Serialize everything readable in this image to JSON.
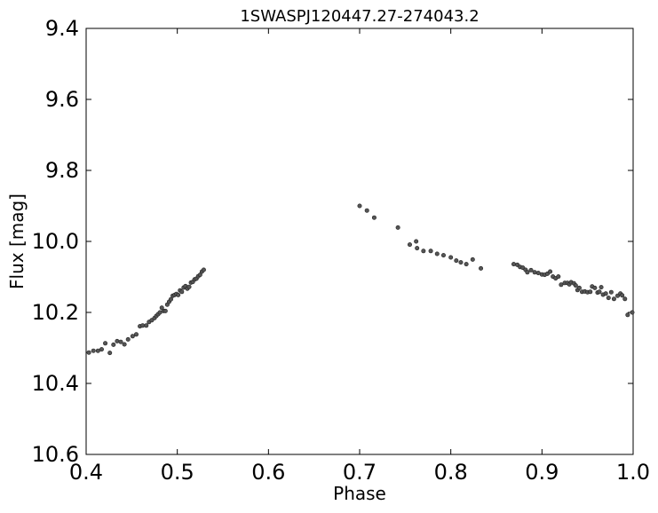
{
  "chart_data": {
    "type": "scatter",
    "title": "1SWASPJ120447.27-274043.2",
    "xlabel": "Phase",
    "ylabel": "Flux [mag]",
    "xlim": [
      0.4,
      1.0
    ],
    "ylim": [
      10.6,
      9.4
    ],
    "y_inverted": true,
    "grid": false,
    "x_ticks": [
      "0.4",
      "0.5",
      "0.6",
      "0.7",
      "0.8",
      "0.9",
      "1.0"
    ],
    "y_ticks": [
      "9.4",
      "9.6",
      "9.8",
      "10.0",
      "10.2",
      "10.4",
      "10.6"
    ],
    "marker_color": "#555555",
    "points": [
      [
        0.403,
        10.313
      ],
      [
        0.408,
        10.308
      ],
      [
        0.413,
        10.308
      ],
      [
        0.417,
        10.304
      ],
      [
        0.421,
        10.287
      ],
      [
        0.426,
        10.314
      ],
      [
        0.43,
        10.291
      ],
      [
        0.434,
        10.281
      ],
      [
        0.438,
        10.283
      ],
      [
        0.442,
        10.29
      ],
      [
        0.446,
        10.276
      ],
      [
        0.451,
        10.267
      ],
      [
        0.455,
        10.262
      ],
      [
        0.459,
        10.239
      ],
      [
        0.462,
        10.237
      ],
      [
        0.466,
        10.237
      ],
      [
        0.469,
        10.227
      ],
      [
        0.472,
        10.222
      ],
      [
        0.475,
        10.216
      ],
      [
        0.477,
        10.21
      ],
      [
        0.479,
        10.205
      ],
      [
        0.481,
        10.2
      ],
      [
        0.483,
        10.187
      ],
      [
        0.485,
        10.196
      ],
      [
        0.487,
        10.196
      ],
      [
        0.489,
        10.178
      ],
      [
        0.491,
        10.17
      ],
      [
        0.493,
        10.163
      ],
      [
        0.495,
        10.153
      ],
      [
        0.497,
        10.151
      ],
      [
        0.499,
        10.148
      ],
      [
        0.501,
        10.151
      ],
      [
        0.503,
        10.138
      ],
      [
        0.505,
        10.142
      ],
      [
        0.507,
        10.13
      ],
      [
        0.509,
        10.126
      ],
      [
        0.511,
        10.133
      ],
      [
        0.513,
        10.128
      ],
      [
        0.515,
        10.116
      ],
      [
        0.517,
        10.114
      ],
      [
        0.519,
        10.107
      ],
      [
        0.521,
        10.105
      ],
      [
        0.523,
        10.098
      ],
      [
        0.525,
        10.094
      ],
      [
        0.527,
        10.085
      ],
      [
        0.529,
        10.08
      ],
      [
        0.7,
        9.9
      ],
      [
        0.708,
        9.913
      ],
      [
        0.716,
        9.933
      ],
      [
        0.742,
        9.961
      ],
      [
        0.755,
        10.009
      ],
      [
        0.762,
        10.0
      ],
      [
        0.763,
        10.019
      ],
      [
        0.77,
        10.027
      ],
      [
        0.778,
        10.027
      ],
      [
        0.785,
        10.035
      ],
      [
        0.792,
        10.039
      ],
      [
        0.8,
        10.045
      ],
      [
        0.806,
        10.054
      ],
      [
        0.811,
        10.059
      ],
      [
        0.817,
        10.064
      ],
      [
        0.824,
        10.051
      ],
      [
        0.833,
        10.076
      ],
      [
        0.869,
        10.064
      ],
      [
        0.873,
        10.066
      ],
      [
        0.876,
        10.072
      ],
      [
        0.879,
        10.074
      ],
      [
        0.882,
        10.08
      ],
      [
        0.884,
        10.087
      ],
      [
        0.888,
        10.081
      ],
      [
        0.892,
        10.087
      ],
      [
        0.896,
        10.089
      ],
      [
        0.9,
        10.093
      ],
      [
        0.903,
        10.094
      ],
      [
        0.906,
        10.091
      ],
      [
        0.909,
        10.085
      ],
      [
        0.912,
        10.099
      ],
      [
        0.915,
        10.104
      ],
      [
        0.918,
        10.099
      ],
      [
        0.921,
        10.122
      ],
      [
        0.925,
        10.117
      ],
      [
        0.928,
        10.117
      ],
      [
        0.93,
        10.121
      ],
      [
        0.932,
        10.115
      ],
      [
        0.935,
        10.118
      ],
      [
        0.937,
        10.124
      ],
      [
        0.939,
        10.137
      ],
      [
        0.941,
        10.131
      ],
      [
        0.944,
        10.142
      ],
      [
        0.947,
        10.141
      ],
      [
        0.95,
        10.143
      ],
      [
        0.953,
        10.142
      ],
      [
        0.955,
        10.127
      ],
      [
        0.958,
        10.131
      ],
      [
        0.961,
        10.144
      ],
      [
        0.963,
        10.142
      ],
      [
        0.965,
        10.129
      ],
      [
        0.967,
        10.15
      ],
      [
        0.97,
        10.147
      ],
      [
        0.973,
        10.159
      ],
      [
        0.976,
        10.143
      ],
      [
        0.979,
        10.162
      ],
      [
        0.983,
        10.153
      ],
      [
        0.986,
        10.147
      ],
      [
        0.988,
        10.152
      ],
      [
        0.991,
        10.162
      ],
      [
        0.994,
        10.207
      ],
      [
        0.999,
        10.2
      ]
    ]
  }
}
